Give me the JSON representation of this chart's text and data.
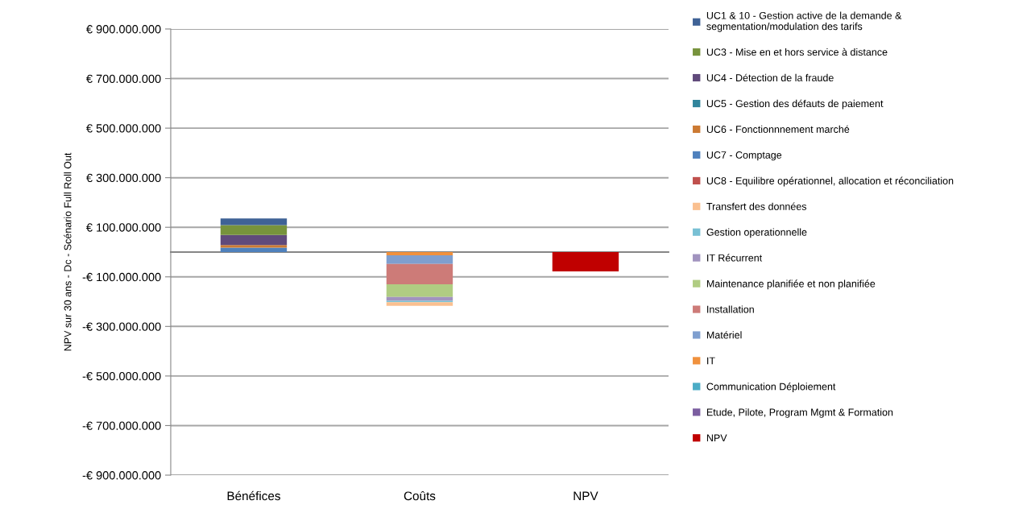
{
  "chart_data": {
    "type": "bar",
    "stacked": true,
    "categories": [
      "Bénéfices",
      "Coûts",
      "NPV"
    ],
    "ylabel": "NPV sur 30 ans - Dc - Scénario Full Roll Out",
    "ylim": [
      -900000000,
      900000000
    ],
    "yticks": [
      {
        "value": -900000000,
        "label": "-€ 900.000.000"
      },
      {
        "value": -700000000,
        "label": "-€ 700.000.000"
      },
      {
        "value": -500000000,
        "label": "-€ 500.000.000"
      },
      {
        "value": -300000000,
        "label": "-€ 300.000.000"
      },
      {
        "value": -100000000,
        "label": "-€ 100.000.000"
      },
      {
        "value": 100000000,
        "label": "€ 100.000.000"
      },
      {
        "value": 300000000,
        "label": "€ 300.000.000"
      },
      {
        "value": 500000000,
        "label": "€ 500.000.000"
      },
      {
        "value": 700000000,
        "label": "€ 700.000.000"
      },
      {
        "value": 900000000,
        "label": "€ 900.000.000"
      }
    ],
    "grid": "y",
    "legend": "right",
    "series": [
      {
        "name": "NPV",
        "color": "#c00000",
        "values": [
          null,
          null,
          -78000000
        ]
      },
      {
        "name": "Etude, Pilote, Program Mgmt & Formation",
        "color": "#7b5ea0",
        "values": [
          null,
          null,
          null
        ]
      },
      {
        "name": "Communication Déploiement",
        "color": "#4bacc6",
        "values": [
          null,
          null,
          null
        ]
      },
      {
        "name": "IT",
        "color": "#f0913d",
        "values": [
          null,
          -13000000,
          null
        ]
      },
      {
        "name": "Matériel",
        "color": "#7f9fcf",
        "values": [
          null,
          -35000000,
          null
        ]
      },
      {
        "name": "Installation",
        "color": "#cd7b78",
        "values": [
          null,
          -82000000,
          null
        ]
      },
      {
        "name": "Maintenance planifiée et non planifiée",
        "color": "#b0cc82",
        "values": [
          null,
          -51000000,
          null
        ]
      },
      {
        "name": "IT Récurrent",
        "color": "#a193bf",
        "values": [
          null,
          -16000000,
          null
        ]
      },
      {
        "name": "Gestion operationnelle",
        "color": "#78c0d4",
        "values": [
          null,
          -5000000,
          null
        ]
      },
      {
        "name": "Transfert des données",
        "color": "#fac090",
        "values": [
          null,
          -15000000,
          null
        ]
      },
      {
        "name": "UC8 - Equilibre opérationnel, allocation et réconciliation",
        "color": "#c0504d",
        "values": [
          null,
          null,
          null
        ]
      },
      {
        "name": "UC7 - Comptage",
        "color": "#4f81bd",
        "values": [
          18000000,
          null,
          null
        ]
      },
      {
        "name": "UC6 - Fonctionnnement marché",
        "color": "#cc7a33",
        "values": [
          10000000,
          null,
          null
        ]
      },
      {
        "name": "UC5 - Gestion des défauts de paiement",
        "color": "#31859c",
        "values": [
          null,
          null,
          null
        ]
      },
      {
        "name": "UC4 - Détection de la fraude",
        "color": "#604a7b",
        "values": [
          41000000,
          null,
          null
        ]
      },
      {
        "name": "UC3 - Mise en et hors service à distance",
        "color": "#77933c",
        "values": [
          40000000,
          null,
          null
        ]
      },
      {
        "name": "UC1 & 10 - Gestion active de la demande &\nsegmentation/modulation des tarifs",
        "color": "#3f6296",
        "values": [
          27000000,
          null,
          null
        ]
      }
    ]
  }
}
